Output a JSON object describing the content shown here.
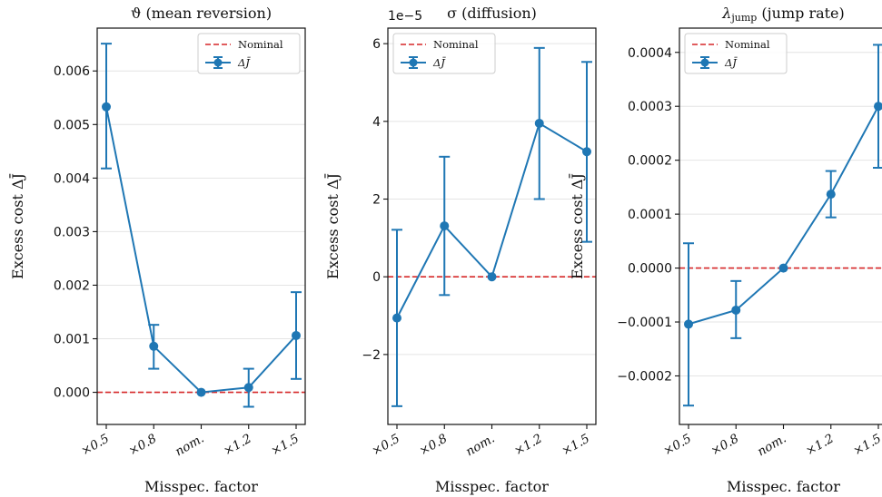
{
  "chart_data": [
    {
      "type": "line",
      "title": "ϑ (mean reversion)",
      "xlabel": "Misspec. factor",
      "ylabel": "Excess cost ΔJ̄",
      "categories": [
        "×0.5",
        "×0.8",
        "nom.",
        "×1.2",
        "×1.5"
      ],
      "series": [
        {
          "name": "ΔJ̄",
          "color": "#1f77b4",
          "values": [
            0.00533,
            0.00086,
            0.0,
            9e-05,
            0.00106
          ],
          "err_low": [
            0.00418,
            0.00044,
            0.0,
            -0.00027,
            0.00025
          ],
          "err_high": [
            0.00651,
            0.00126,
            0.0,
            0.00044,
            0.00187
          ]
        }
      ],
      "reference_line": {
        "name": "Nominal",
        "y": 0,
        "color": "#d62728",
        "style": "dashed"
      },
      "yticks": [
        "0.000",
        "0.001",
        "0.002",
        "0.003",
        "0.004",
        "0.005",
        "0.006"
      ],
      "ylim": [
        -0.0006,
        0.0068
      ],
      "offset_text": "",
      "grid": "horizontal",
      "legend": "top-right"
    },
    {
      "type": "line",
      "title": "σ (diffusion)",
      "xlabel": "Misspec. factor",
      "ylabel": "Excess cost ΔJ̄",
      "categories": [
        "×0.5",
        "×0.8",
        "nom.",
        "×1.2",
        "×1.5"
      ],
      "series": [
        {
          "name": "ΔJ̄",
          "color": "#1f77b4",
          "values": [
            -1.06,
            1.31,
            0.0,
            3.95,
            3.22
          ],
          "err_low": [
            -3.33,
            -0.47,
            0.0,
            2.0,
            0.9
          ],
          "err_high": [
            1.21,
            3.09,
            0.0,
            5.89,
            5.53
          ]
        }
      ],
      "reference_line": {
        "name": "Nominal",
        "y": 0,
        "color": "#d62728",
        "style": "dashed"
      },
      "yticks": [
        "−2",
        "0",
        "2",
        "4",
        "6"
      ],
      "ylim": [
        -3.8,
        6.4
      ],
      "offset_text": "1e−5",
      "grid": "horizontal",
      "legend": "top-left"
    },
    {
      "type": "line",
      "title_main": "λ",
      "title_sub": "jump",
      "title_rest": " (jump rate)",
      "xlabel": "Misspec. factor",
      "ylabel": "Excess cost ΔJ̄",
      "categories": [
        "×0.5",
        "×0.8",
        "nom.",
        "×1.2",
        "×1.5"
      ],
      "series": [
        {
          "name": "ΔJ̄",
          "color": "#1f77b4",
          "values": [
            -0.000104,
            -7.8e-05,
            0.0,
            0.000137,
            0.0003
          ],
          "err_low": [
            -0.000255,
            -0.00013,
            0.0,
            9.4e-05,
            0.000186
          ],
          "err_high": [
            4.6e-05,
            -2.4e-05,
            0.0,
            0.00018,
            0.000414
          ]
        }
      ],
      "reference_line": {
        "name": "Nominal",
        "y": 0,
        "color": "#d62728",
        "style": "dashed"
      },
      "yticks": [
        "−0.0002",
        "−0.0001",
        "0.0000",
        "0.0001",
        "0.0002",
        "0.0003",
        "0.0004"
      ],
      "ylim": [
        -0.00029,
        0.000445
      ],
      "offset_text": "",
      "grid": "horizontal",
      "legend": "top-left"
    }
  ]
}
